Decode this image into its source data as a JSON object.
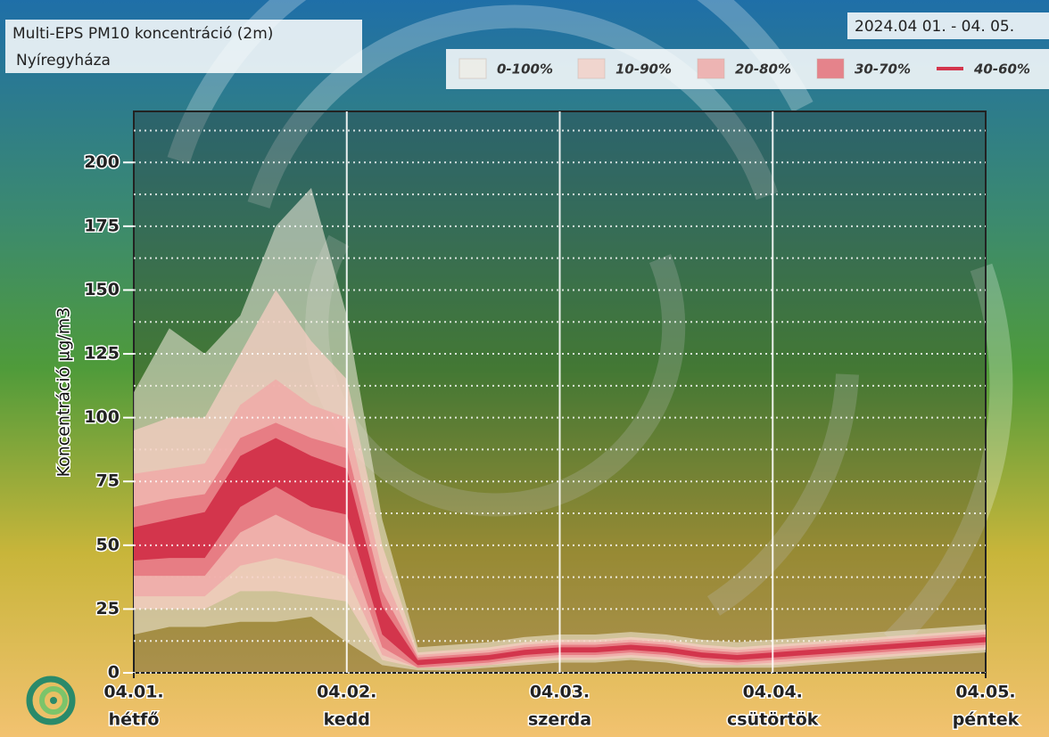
{
  "chart_data": {
    "type": "fan",
    "title": "Multi-EPS PM10 koncentráció (2m)",
    "subtitle": "Nyíregyháza",
    "date_range": "2024.04 01. - 04. 05.",
    "y_label": "Koncentráció µg/m3",
    "x": [
      0,
      4,
      8,
      12,
      16,
      20,
      24,
      28,
      32,
      36,
      40,
      44,
      48,
      52,
      56,
      60,
      64,
      68,
      72,
      76,
      80,
      84,
      88,
      92,
      96
    ],
    "xlim": [
      0,
      96
    ],
    "xticks": [
      {
        "value": 0,
        "label": "04.01."
      },
      {
        "value": 24,
        "label": "04.02."
      },
      {
        "value": 48,
        "label": "04.03."
      },
      {
        "value": 72,
        "label": "04.04."
      },
      {
        "value": 96,
        "label": "04.05."
      }
    ],
    "xtick_days": [
      "hétfő",
      "kedd",
      "szerda",
      "csütörtök",
      "péntek"
    ],
    "ylim": [
      0,
      220
    ],
    "yticks": [
      0,
      25,
      50,
      75,
      100,
      125,
      150,
      175,
      200
    ],
    "minor_yticks": [
      12.5,
      37.5,
      62.5,
      87.5,
      112.5,
      137.5,
      162.5,
      187.5,
      212.5
    ],
    "grid": true,
    "series": [
      {
        "name": "0-100%",
        "color": "rgba(246,238,226,0.55)",
        "lower": [
          15,
          18,
          18,
          20,
          20,
          22,
          12,
          3,
          1,
          1,
          2,
          3,
          4,
          4,
          5,
          4,
          2,
          2,
          2,
          3,
          4,
          5,
          6,
          7,
          8
        ],
        "upper": [
          110,
          135,
          125,
          140,
          175,
          190,
          140,
          60,
          10,
          11,
          12,
          14,
          15,
          15,
          16,
          15,
          13,
          12,
          13,
          14,
          15,
          16,
          17,
          18,
          19
        ]
      },
      {
        "name": "10-90%",
        "color": "rgba(245,205,195,0.75)",
        "lower": [
          25,
          25,
          25,
          32,
          32,
          30,
          28,
          5,
          2,
          2,
          3,
          4,
          5,
          5,
          6,
          5,
          3,
          3,
          3,
          4,
          5,
          6,
          7,
          8,
          9
        ],
        "upper": [
          95,
          100,
          100,
          125,
          150,
          130,
          115,
          50,
          8,
          9,
          10,
          12,
          13,
          13,
          14,
          13,
          11,
          10,
          11,
          12,
          13,
          14,
          15,
          16,
          17
        ]
      },
      {
        "name": "20-80%",
        "color": "rgba(240,170,168,0.85)",
        "lower": [
          30,
          30,
          30,
          42,
          45,
          42,
          38,
          7,
          2,
          2,
          3,
          5,
          6,
          6,
          7,
          6,
          4,
          3,
          4,
          5,
          6,
          7,
          8,
          9,
          10
        ],
        "upper": [
          78,
          80,
          82,
          105,
          115,
          105,
          100,
          40,
          7,
          8,
          9,
          11,
          12,
          12,
          13,
          12,
          10,
          9,
          10,
          11,
          12,
          13,
          14,
          15,
          16
        ]
      },
      {
        "name": "30-70%",
        "color": "rgba(230,120,128,0.9)",
        "lower": [
          38,
          38,
          38,
          55,
          62,
          55,
          50,
          10,
          2,
          3,
          4,
          6,
          7,
          7,
          8,
          7,
          5,
          4,
          5,
          6,
          7,
          8,
          9,
          10,
          11
        ],
        "upper": [
          65,
          68,
          70,
          92,
          98,
          92,
          88,
          32,
          6,
          7,
          8,
          10,
          11,
          11,
          12,
          11,
          9,
          8,
          9,
          10,
          11,
          12,
          13,
          14,
          15
        ]
      },
      {
        "name": "40-60%",
        "color": "#d3354c",
        "lower": [
          44,
          45,
          45,
          65,
          73,
          65,
          62,
          15,
          3,
          4,
          5,
          7,
          8,
          8,
          9,
          8,
          6,
          5,
          6,
          7,
          8,
          9,
          10,
          11,
          12
        ],
        "upper": [
          57,
          60,
          63,
          85,
          92,
          85,
          80,
          26,
          5,
          6,
          7,
          9,
          10,
          10,
          11,
          10,
          8,
          7,
          8,
          9,
          10,
          11,
          12,
          13,
          14
        ]
      }
    ]
  }
}
